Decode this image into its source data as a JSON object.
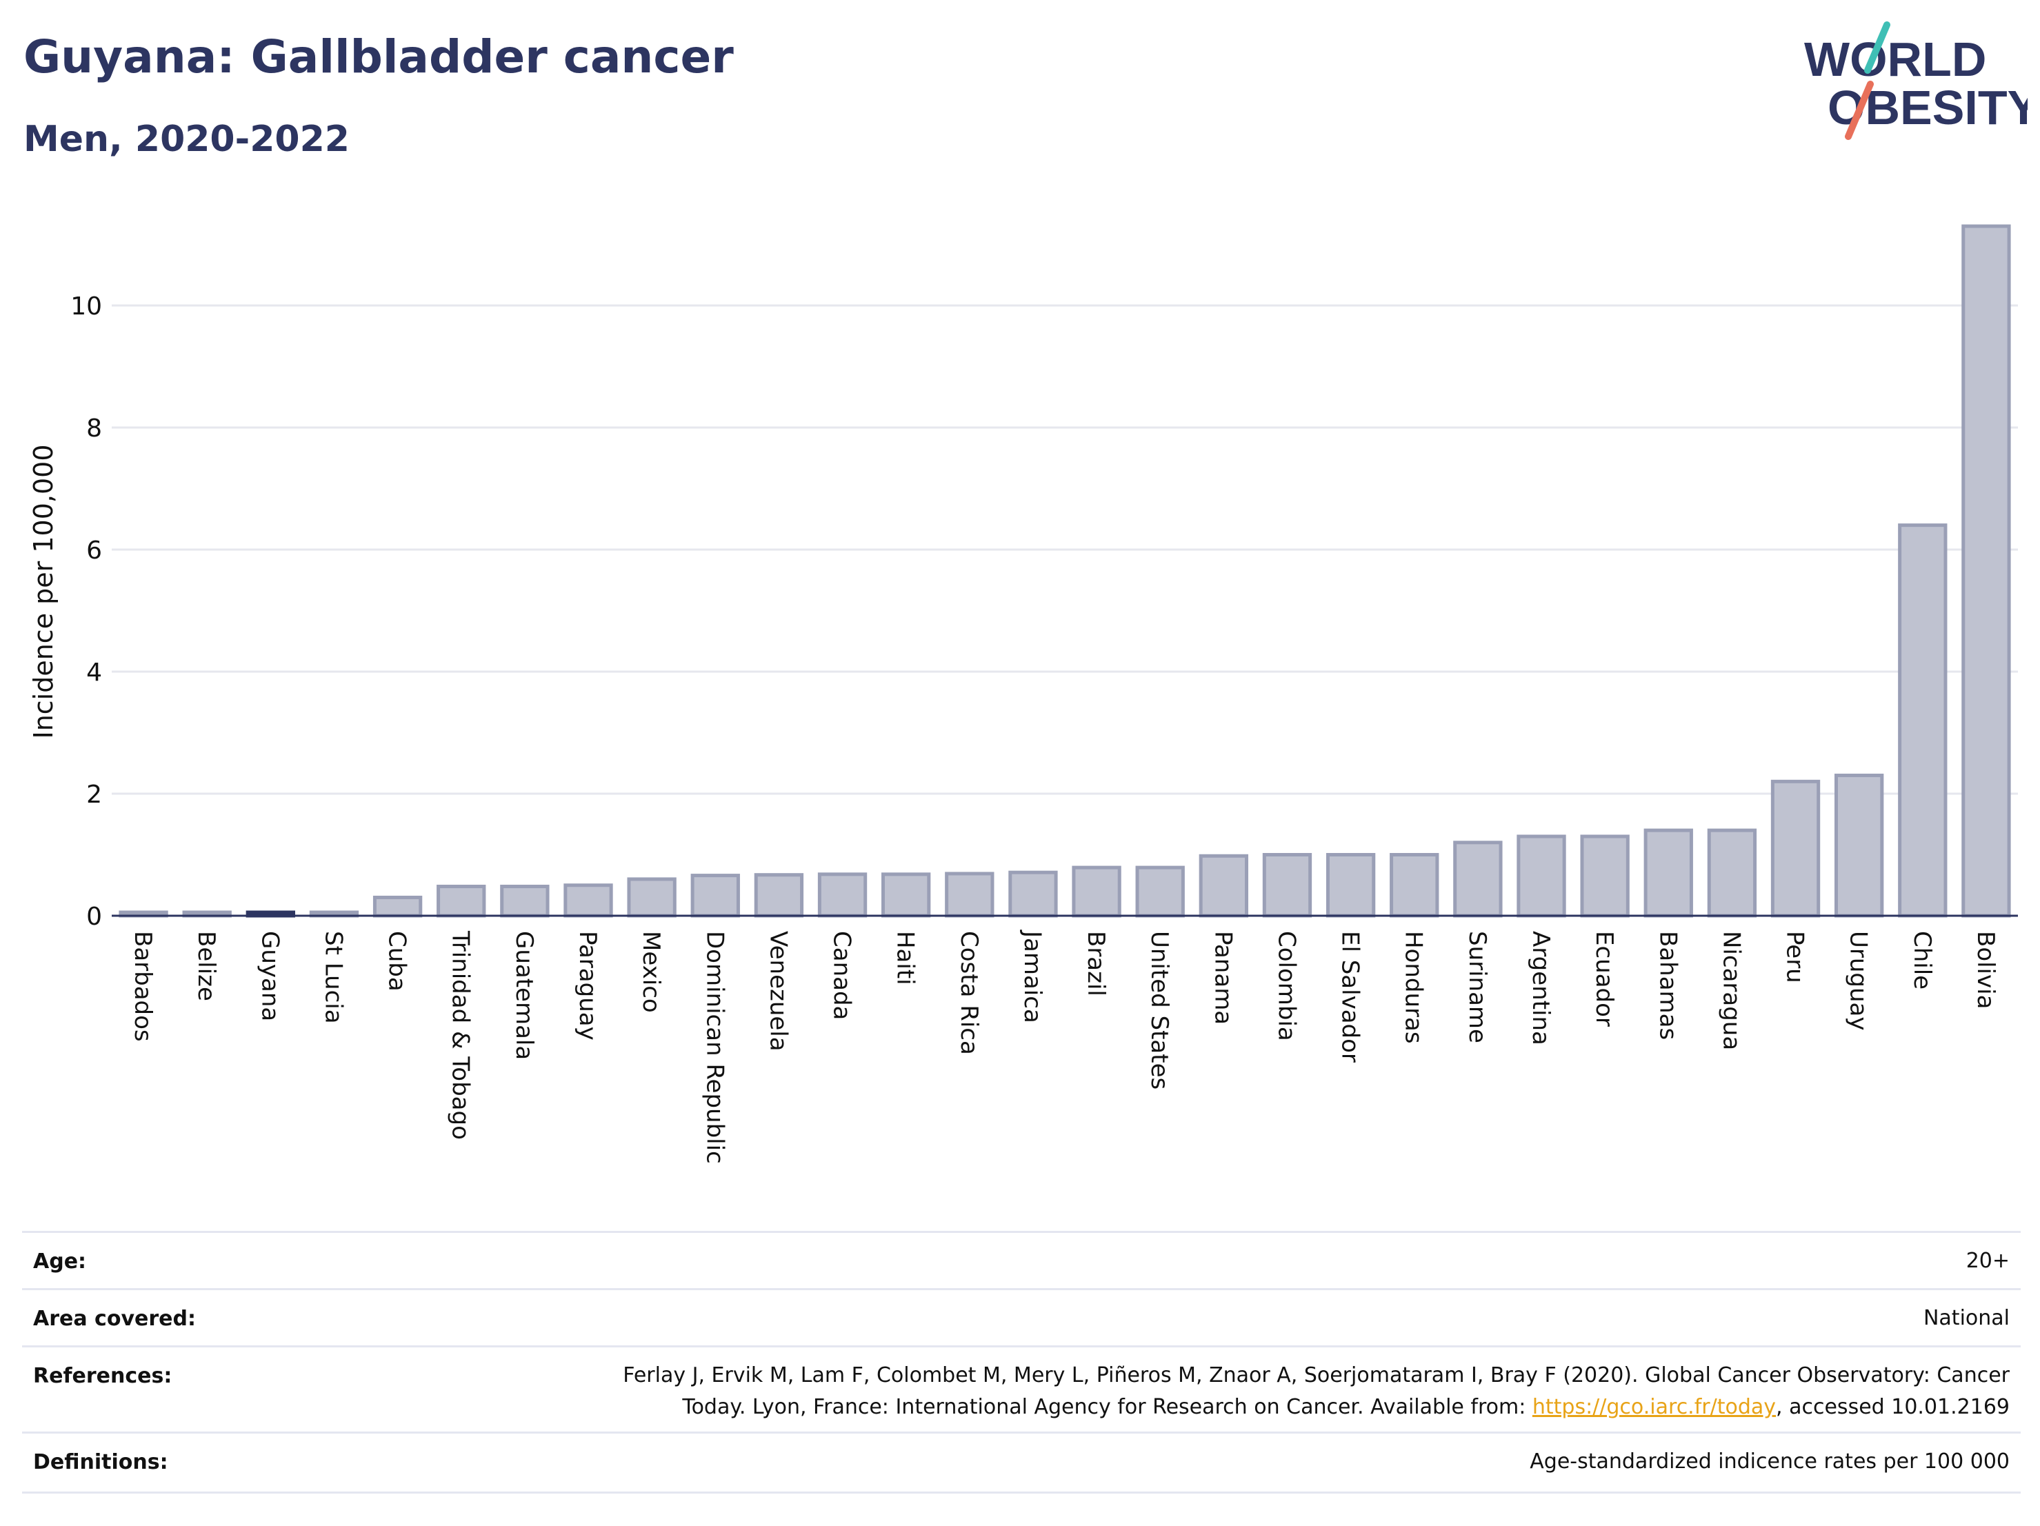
{
  "header": {
    "title": "Guyana: Gallbladder cancer",
    "subtitle": "Men, 2020-2022"
  },
  "logo": {
    "line1": "WORLD",
    "line2": "OBESITY",
    "accent_colors": [
      "#3fbfb5",
      "#e8705a"
    ]
  },
  "chart_data": {
    "type": "bar",
    "title": "Guyana: Gallbladder cancer",
    "subtitle": "Men, 2020-2022",
    "xlabel": "",
    "ylabel": "Incidence per 100,000",
    "ylim": [
      0,
      11.3
    ],
    "yticks": [
      0,
      2,
      4,
      6,
      8,
      10
    ],
    "grid": true,
    "highlight": "Guyana",
    "colors": {
      "bar": "#bfc2d0",
      "bar_edge": "#9a9fb6",
      "highlight": "#2d3561",
      "grid": "#e6e7ee",
      "axis": "#2d3561"
    },
    "categories": [
      "Barbados",
      "Belize",
      "Guyana",
      "St Lucia",
      "Cuba",
      "Trinidad & Tobago",
      "Guatemala",
      "Paraguay",
      "Mexico",
      "Dominican Republic",
      "Venezuela",
      "Canada",
      "Haiti",
      "Costa Rica",
      "Jamaica",
      "Brazil",
      "United States",
      "Panama",
      "Colombia",
      "El Salvador",
      "Honduras",
      "Suriname",
      "Argentina",
      "Ecuador",
      "Bahamas",
      "Nicaragua",
      "Peru",
      "Uruguay",
      "Chile",
      "Bolivia"
    ],
    "values": [
      0.02,
      0.02,
      0.03,
      0.02,
      0.3,
      0.48,
      0.48,
      0.5,
      0.6,
      0.66,
      0.67,
      0.68,
      0.68,
      0.69,
      0.71,
      0.79,
      0.79,
      0.98,
      1.0,
      1.0,
      1.0,
      1.2,
      1.3,
      1.3,
      1.4,
      1.4,
      2.2,
      2.3,
      6.4,
      11.3
    ]
  },
  "info": {
    "age_label": "Age:",
    "age_value": "20+",
    "area_label": "Area covered:",
    "area_value": "National",
    "references_label": "References:",
    "references_line1": "Ferlay J, Ervik M, Lam F, Colombet M, Mery L, Piñeros M, Znaor A, Soerjomataram I, Bray F (2020). Global Cancer Observatory: Cancer",
    "references_line2_pre": "Today. Lyon, France: International Agency for Research on Cancer. Available from: ",
    "references_link": "https://gco.iarc.fr/today",
    "references_line2_post": ", accessed 10.01.2169",
    "definitions_label": "Definitions:",
    "definitions_value": "Age-standardized indicence rates per 100 000"
  }
}
